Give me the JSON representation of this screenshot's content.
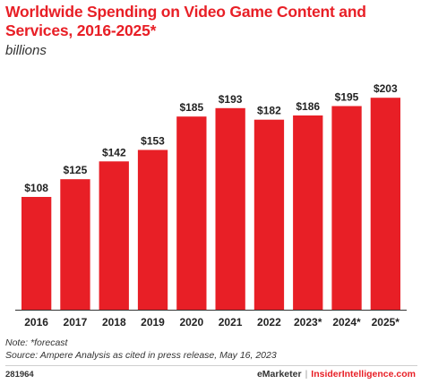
{
  "header": {
    "title": "Worldwide Spending on Video Game Content and Services, 2016-2025*",
    "subtitle": "billions"
  },
  "chart_data": {
    "type": "bar",
    "title": "Worldwide Spending on Video Game Content and Services, 2016-2025*",
    "subtitle": "billions",
    "categories": [
      "2016",
      "2017",
      "2018",
      "2019",
      "2020",
      "2021",
      "2022",
      "2023*",
      "2024*",
      "2025*"
    ],
    "values": [
      108,
      125,
      142,
      153,
      185,
      193,
      182,
      186,
      195,
      203
    ],
    "labels": [
      "$108",
      "$125",
      "$142",
      "$153",
      "$185",
      "$193",
      "$182",
      "$186",
      "$195",
      "$203"
    ],
    "ylim": [
      0,
      210
    ],
    "grid": false,
    "bar_color": "#e81f26"
  },
  "notes": {
    "note": "Note: *forecast",
    "source": "Source: Ampere Analysis as cited in press release, May 16, 2023"
  },
  "footer": {
    "code": "281964",
    "brand_left": "eMarketer",
    "separator": "|",
    "brand_right": "InsiderIntelligence.com"
  },
  "colors": {
    "accent": "#e81f26",
    "text": "#222222"
  }
}
